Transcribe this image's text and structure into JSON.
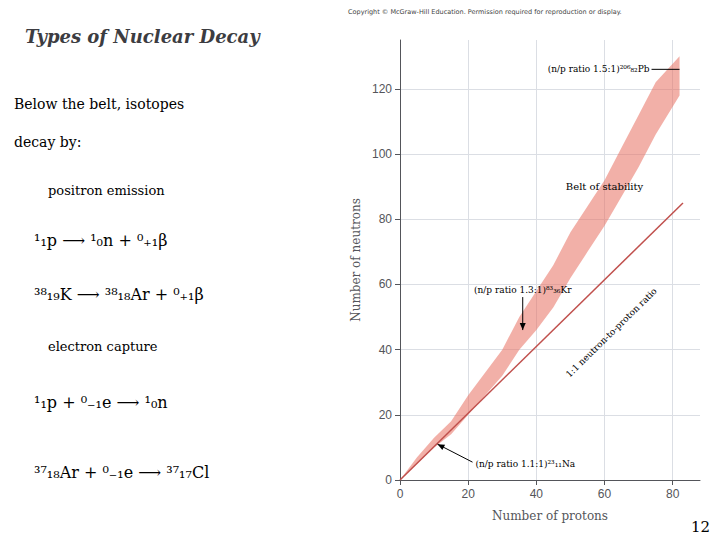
{
  "chart_data": {
    "type": "line",
    "title": "Types of Nuclear Decay",
    "side_text": [
      "Below the belt, isotopes",
      "decay by:",
      "positron emission",
      "¹₁p ⟶ ¹₀n + ⁰₊₁β",
      "³⁸₁₉K ⟶ ³⁸₁₈Ar + ⁰₊₁β",
      "electron capture",
      "¹₁p + ⁰₋₁e ⟶ ¹₀n",
      "³⁷₁₈Ar + ⁰₋₁e ⟶ ³⁷₁₇Cl"
    ],
    "source": "Copyright © McGraw-Hill Education. Permission required for reproduction or display.",
    "page_number": "12",
    "x_label": "Number of protons",
    "y_label": "Number of neutrons",
    "xlim": [
      0,
      88
    ],
    "ylim": [
      0,
      135
    ],
    "xticks": [
      0,
      20,
      40,
      60,
      80
    ],
    "yticks": [
      0,
      20,
      40,
      60,
      80,
      100,
      120
    ],
    "grid": true,
    "series": [
      {
        "type": "band",
        "color": "#e87060",
        "x": [
          0,
          5,
          10,
          15,
          20,
          25,
          30,
          35,
          40,
          45,
          50,
          55,
          60,
          65,
          70,
          75,
          82
        ],
        "lower": [
          0,
          5,
          10,
          14,
          20,
          26,
          32,
          40,
          46,
          53,
          62,
          70,
          78,
          87,
          96,
          106,
          118
        ],
        "upper": [
          0,
          7,
          13,
          18,
          26,
          33,
          40,
          50,
          58,
          66,
          76,
          84,
          92,
          102,
          112,
          122,
          130
        ]
      },
      {
        "type": "line",
        "color": "#c0504d",
        "x": [
          0,
          83
        ],
        "values": [
          0,
          85
        ]
      }
    ],
    "annotations": [
      {
        "text": "(n/p ratio 1.5:1)²⁰⁶₈₂Pb",
        "x": 82,
        "y": 126
      },
      {
        "text": "(n/p ratio 1.3:1)⁸³₃₆Kr",
        "x": 36,
        "y": 46
      },
      {
        "text": "(n/p ratio 1.1:1)²³₁₁Na",
        "x": 11,
        "y": 11
      }
    ],
    "labels": [
      {
        "text": "1:1 neutron-to-proton ratio",
        "x": 50,
        "y": 31
      },
      {
        "text": "Belt of stability",
        "x": 60,
        "y": 90
      }
    ]
  }
}
